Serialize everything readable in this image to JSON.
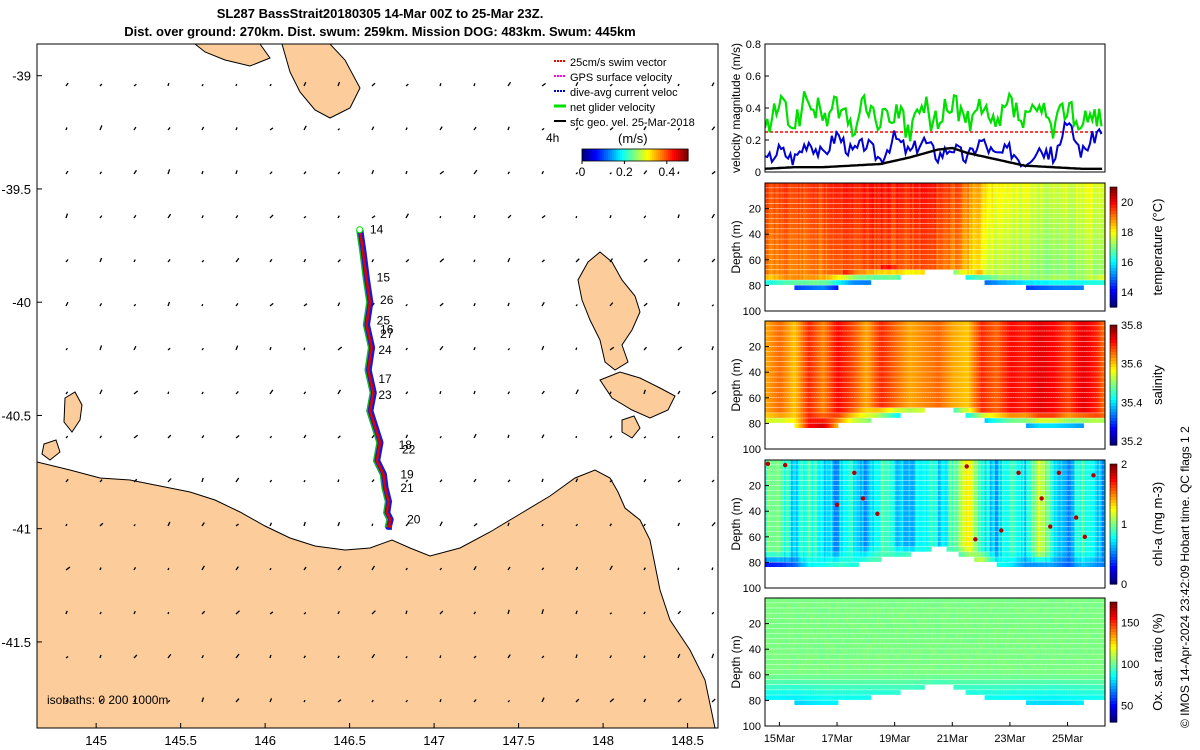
{
  "title_line1": "SL287 BassStrait20180305 14-Mar 00Z to 25-Mar 23Z.",
  "title_line2": "Dist. over ground: 270km. Dist. swum: 259km. Mission DOG: 483km. Swum: 445km",
  "credit": "© IMOS 14-Apr-2024 23:42:09 Hobart time. QC flags 1  2",
  "colors": {
    "land": "#fccc9a",
    "track": "#e00000",
    "dive_avg": "#0000d0",
    "net_velocity": "#00e000",
    "swim_vector": "#ff0000",
    "gps": "#ff00ff",
    "geo": "#000000"
  },
  "chart_data": [
    {
      "type": "scatter",
      "name": "map",
      "xlim": [
        144.65,
        148.68
      ],
      "ylim": [
        -41.88,
        -38.86
      ],
      "xticks": [
        145,
        145.5,
        146,
        146.5,
        147,
        147.5,
        148,
        148.5
      ],
      "xtick_labels": [
        "145",
        "145.5",
        "146",
        "146.5",
        "147",
        "147.5",
        "148",
        "148.5"
      ],
      "yticks": [
        -39,
        -39.5,
        -40,
        -40.5,
        -41,
        -41.5
      ],
      "ytick_labels": [
        "-39",
        "-39.5",
        "-40",
        "-40.5",
        "-41",
        "-41.5"
      ],
      "track": {
        "lon": [
          146.56,
          146.58,
          146.6,
          146.62,
          146.6,
          146.63,
          146.61,
          146.64,
          146.62,
          146.65,
          146.68,
          146.66,
          146.7,
          146.71,
          146.73,
          146.72,
          146.74,
          146.73,
          146.75
        ],
        "lat": [
          -39.68,
          -39.78,
          -39.9,
          -40.0,
          -40.1,
          -40.2,
          -40.3,
          -40.4,
          -40.48,
          -40.55,
          -40.62,
          -40.7,
          -40.76,
          -40.82,
          -40.88,
          -40.93,
          -40.96,
          -40.99,
          -40.99
        ]
      },
      "day_labels": [
        {
          "text": "14",
          "lon": 146.62,
          "lat": -39.68
        },
        {
          "text": "15",
          "lon": 146.66,
          "lat": -39.89
        },
        {
          "text": "26",
          "lon": 146.68,
          "lat": -39.99
        },
        {
          "text": "25",
          "lon": 146.66,
          "lat": -40.08
        },
        {
          "text": "16",
          "lon": 146.68,
          "lat": -40.12
        },
        {
          "text": "27",
          "lon": 146.68,
          "lat": -40.14
        },
        {
          "text": "24",
          "lon": 146.67,
          "lat": -40.21
        },
        {
          "text": "17",
          "lon": 146.67,
          "lat": -40.34
        },
        {
          "text": "23",
          "lon": 146.67,
          "lat": -40.41
        },
        {
          "text": "18",
          "lon": 146.79,
          "lat": -40.63
        },
        {
          "text": "22",
          "lon": 146.81,
          "lat": -40.65
        },
        {
          "text": "19",
          "lon": 146.8,
          "lat": -40.76
        },
        {
          "text": "21",
          "lon": 146.8,
          "lat": -40.82
        },
        {
          "text": "20",
          "lon": 146.84,
          "lat": -40.96
        }
      ],
      "legend": [
        "25cm/s swim vector",
        "GPS surface velocity",
        "dive-avg current veloc",
        "net glider velocity",
        "sfc geo. vel. 25-Mar-2018"
      ],
      "legend_position": "top-right",
      "scale_note": "4h",
      "colorbar": {
        "label": "(m/s)",
        "ticks": [
          0,
          0.2,
          0.4
        ],
        "tick_labels": [
          "0",
          "0.2",
          "0.4"
        ],
        "range": [
          0,
          0.5
        ]
      },
      "isobaths_label": "isobaths: 0   200  1000m"
    },
    {
      "type": "line",
      "name": "velocity",
      "ylabel": "velocity magnitude (m/s)",
      "xlim": [
        14.5,
        26.3
      ],
      "ylim": [
        0,
        0.8
      ],
      "yticks": [
        0,
        0.2,
        0.4,
        0.6,
        0.8
      ],
      "ytick_labels": [
        "0",
        "0.2",
        "0.4",
        "0.6",
        "0.8"
      ],
      "series": [
        {
          "name": "25cm/s swim vector",
          "x": [
            14.5,
            26.2
          ],
          "y": [
            0.25,
            0.25
          ]
        },
        {
          "name": "net glider velocity",
          "x": [
            14.5,
            15.0,
            15.5,
            16.0,
            16.5,
            17.0,
            17.5,
            18.0,
            18.5,
            19.0,
            19.5,
            20.0,
            20.5,
            21.0,
            21.5,
            22.0,
            22.5,
            23.0,
            23.5,
            24.0,
            24.5,
            25.0,
            25.5,
            26.0,
            26.2
          ],
          "y": [
            0.25,
            0.42,
            0.3,
            0.46,
            0.34,
            0.42,
            0.26,
            0.44,
            0.3,
            0.38,
            0.24,
            0.42,
            0.28,
            0.46,
            0.3,
            0.38,
            0.26,
            0.44,
            0.3,
            0.4,
            0.26,
            0.44,
            0.28,
            0.38,
            0.3
          ]
        },
        {
          "name": "dive-avg current veloc",
          "x": [
            14.5,
            15.0,
            15.5,
            16.0,
            16.5,
            17.0,
            17.5,
            18.0,
            18.5,
            19.0,
            19.5,
            20.0,
            20.5,
            21.0,
            21.5,
            22.0,
            22.5,
            23.0,
            23.5,
            24.0,
            24.5,
            25.0,
            25.5,
            26.0,
            26.2
          ],
          "y": [
            0.06,
            0.14,
            0.08,
            0.2,
            0.1,
            0.24,
            0.12,
            0.18,
            0.08,
            0.22,
            0.12,
            0.2,
            0.1,
            0.16,
            0.08,
            0.2,
            0.1,
            0.14,
            0.06,
            0.16,
            0.1,
            0.3,
            0.12,
            0.24,
            0.28
          ]
        },
        {
          "name": "sfc geo. vel. 25-Mar-2018",
          "x": [
            14.5,
            15.5,
            16.5,
            17.5,
            18.5,
            19.5,
            20.5,
            21.0,
            21.5,
            22.5,
            23.5,
            24.5,
            25.5,
            26.2
          ],
          "y": [
            0.02,
            0.03,
            0.03,
            0.04,
            0.05,
            0.09,
            0.14,
            0.15,
            0.12,
            0.08,
            0.04,
            0.03,
            0.02,
            0.02
          ]
        }
      ]
    },
    {
      "type": "heatmap",
      "name": "temperature",
      "ylabel": "Depth (m)",
      "colorbar_label": "temperature (°C)",
      "color_range": [
        13,
        21
      ],
      "colorbar_ticks": [
        14,
        16,
        18,
        20
      ],
      "colorbar_tick_labels": [
        "14",
        "16",
        "18",
        "20"
      ],
      "xlim": [
        14.5,
        26.3
      ],
      "ylim": [
        100,
        0
      ],
      "yticks": [
        20,
        40,
        60,
        80,
        100
      ],
      "ytick_labels": [
        "20",
        "40",
        "60",
        "80",
        "100"
      ],
      "time": [
        14.5,
        15.5,
        16.5,
        17.5,
        18.5,
        19.0,
        19.5,
        20.0,
        20.5,
        21.0,
        21.5,
        22.5,
        23.5,
        24.5,
        25.5,
        26.2
      ],
      "bottom_depth": [
        80,
        80,
        81,
        79,
        74,
        73,
        70,
        68,
        64,
        68,
        73,
        78,
        80,
        81,
        80,
        79
      ],
      "thermocline_depth": [
        70,
        71,
        70,
        67,
        64,
        64,
        66,
        66,
        64,
        65,
        66,
        70,
        70,
        71,
        70,
        72
      ],
      "surface_temp": [
        19.5,
        19.5,
        19.6,
        19.8,
        19.9,
        19.8,
        19.7,
        19.9,
        19.7,
        19.5,
        19.0,
        18.0,
        17.8,
        17.6,
        17.8,
        17.8
      ],
      "bottom_temp": [
        14.0,
        14.5,
        14.6,
        13.6,
        16.0,
        16.5,
        16.2,
        16.6,
        16.6,
        16.2,
        15.8,
        14.2,
        14.4,
        14.6,
        15.0,
        15.2
      ]
    },
    {
      "type": "heatmap",
      "name": "salinity",
      "ylabel": "Depth (m)",
      "colorbar_label": "salinity",
      "color_range": [
        35.18,
        35.8
      ],
      "colorbar_ticks": [
        35.2,
        35.4,
        35.6,
        35.8
      ],
      "colorbar_tick_labels": [
        "35.2",
        "35.4",
        "35.6",
        "35.8"
      ],
      "xlim": [
        14.5,
        26.3
      ],
      "ylim": [
        100,
        0
      ],
      "yticks": [
        20,
        40,
        60,
        80,
        100
      ],
      "ytick_labels": [
        "20",
        "40",
        "60",
        "80",
        "100"
      ],
      "time": [
        14.5,
        15.0,
        15.5,
        16.0,
        16.5,
        17.0,
        17.5,
        18.0,
        18.5,
        19.0,
        19.5,
        20.0,
        20.5,
        21.0,
        21.5,
        22.0,
        22.5,
        23.0,
        23.5,
        24.0,
        24.5,
        25.0,
        25.5,
        26.0,
        26.2
      ],
      "column_sal": [
        35.62,
        35.66,
        35.6,
        35.7,
        35.64,
        35.72,
        35.68,
        35.62,
        35.7,
        35.66,
        35.62,
        35.64,
        35.66,
        35.62,
        35.6,
        35.7,
        35.66,
        35.72,
        35.7,
        35.74,
        35.72,
        35.68,
        35.74,
        35.7,
        35.66
      ],
      "bottom_sal": [
        35.5,
        35.45,
        35.55,
        35.72,
        35.76,
        35.6,
        35.5,
        35.5,
        35.45,
        35.4,
        35.42,
        35.45,
        35.42,
        35.4,
        35.4,
        35.38,
        35.36,
        35.36,
        35.35,
        35.38,
        35.36,
        35.36,
        35.35,
        35.4,
        35.4
      ]
    },
    {
      "type": "heatmap",
      "name": "chl-a",
      "ylabel": "Depth (m)",
      "colorbar_label": "chl-a (mg m-3)",
      "color_range": [
        0,
        2
      ],
      "colorbar_ticks": [
        0,
        1,
        2
      ],
      "colorbar_tick_labels": [
        "0",
        "1",
        "2"
      ],
      "xlim": [
        14.5,
        26.3
      ],
      "ylim": [
        100,
        0
      ],
      "yticks": [
        20,
        40,
        60,
        80,
        100
      ],
      "ytick_labels": [
        "20",
        "40",
        "60",
        "80",
        "100"
      ],
      "time": [
        14.5,
        15.0,
        15.5,
        16.0,
        16.5,
        17.0,
        17.5,
        18.0,
        18.5,
        19.0,
        19.5,
        20.0,
        20.5,
        21.0,
        21.5,
        22.0,
        22.5,
        23.0,
        23.5,
        24.0,
        24.5,
        25.0,
        25.5,
        26.0,
        26.2
      ],
      "column_chl": [
        0.9,
        1.0,
        0.6,
        0.9,
        0.7,
        0.6,
        0.8,
        0.5,
        0.9,
        0.7,
        0.6,
        0.8,
        0.7,
        0.9,
        1.3,
        0.8,
        0.6,
        0.9,
        0.7,
        1.2,
        0.8,
        0.6,
        0.9,
        0.7,
        0.6
      ],
      "bottom_chl": [
        0.15,
        0.2,
        0.4,
        0.7,
        0.8,
        0.9,
        0.8,
        0.9,
        0.9,
        0.9,
        0.9,
        0.8,
        0.9,
        0.9,
        0.9,
        1.2,
        0.8,
        0.7,
        0.5,
        0.4,
        0.5,
        0.4,
        0.6,
        0.5,
        0.5
      ],
      "high_points": [
        [
          14.6,
          3
        ],
        [
          15.2,
          4
        ],
        [
          17.0,
          35
        ],
        [
          17.6,
          10
        ],
        [
          17.9,
          30
        ],
        [
          18.4,
          42
        ],
        [
          21.5,
          5
        ],
        [
          21.8,
          62
        ],
        [
          22.7,
          55
        ],
        [
          23.3,
          10
        ],
        [
          24.1,
          30
        ],
        [
          24.4,
          52
        ],
        [
          24.7,
          10
        ],
        [
          25.3,
          45
        ],
        [
          25.9,
          12
        ],
        [
          25.6,
          60
        ]
      ]
    },
    {
      "type": "heatmap",
      "name": "oxygen",
      "ylabel": "Depth (m)",
      "colorbar_label": "Ox. sat. ratio (%)",
      "color_range": [
        30,
        175
      ],
      "colorbar_ticks": [
        50,
        100,
        150
      ],
      "colorbar_tick_labels": [
        "50",
        "100",
        "150"
      ],
      "xlim": [
        14.5,
        26.3
      ],
      "ylim": [
        100,
        0
      ],
      "yticks": [
        20,
        40,
        60,
        80,
        100
      ],
      "ytick_labels": [
        "20",
        "40",
        "60",
        "80",
        "100"
      ],
      "xticks": [
        15,
        17,
        19,
        21,
        23,
        25
      ],
      "xtick_labels": [
        "15Mar",
        "17Mar",
        "19Mar",
        "21Mar",
        "23Mar",
        "25Mar"
      ],
      "time": [
        14.5,
        15.5,
        16.5,
        17.5,
        18.5,
        19.0,
        19.5,
        20.0,
        20.5,
        21.0,
        21.5,
        22.5,
        23.5,
        24.5,
        25.5,
        26.2
      ],
      "bottom_depth": [
        80,
        80,
        81,
        79,
        74,
        73,
        70,
        68,
        64,
        68,
        73,
        78,
        80,
        81,
        80,
        79
      ],
      "upper_oxy": 102,
      "bottom_oxy": [
        80,
        78,
        82,
        84,
        88,
        90,
        92,
        92,
        94,
        92,
        88,
        84,
        80,
        78,
        82,
        84
      ]
    }
  ]
}
